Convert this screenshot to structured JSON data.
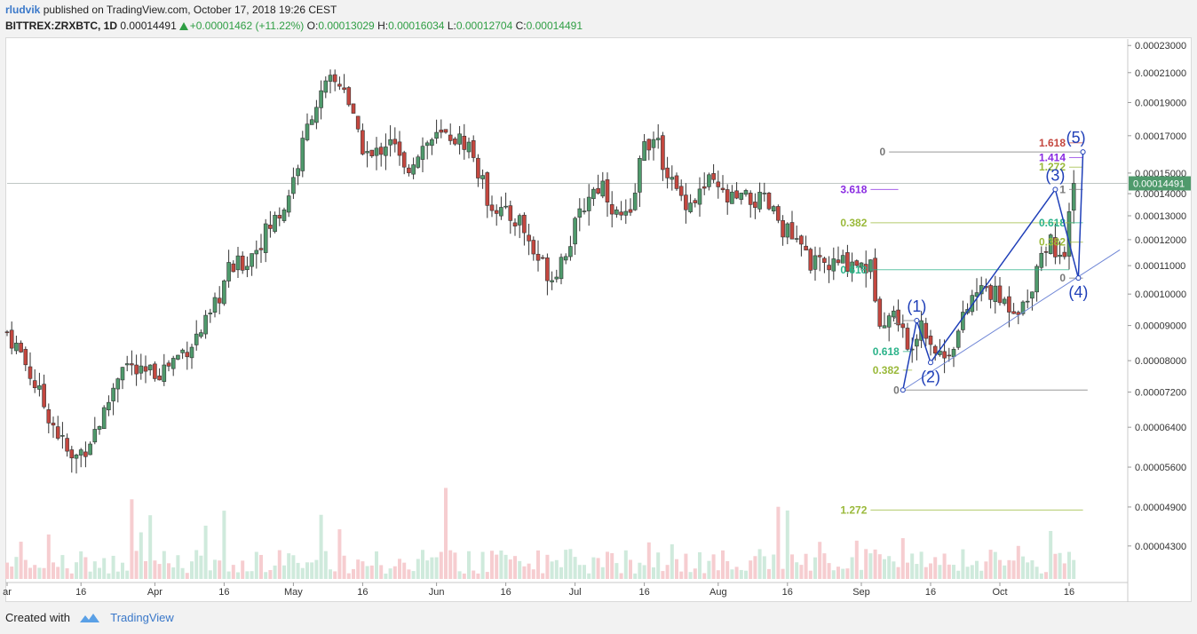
{
  "header": {
    "user": "rludvik",
    "published": "published on TradingView.com, October 17, 2018 19:26 CEST",
    "symbol": "BITTREX:ZRXBTC, 1D",
    "last": "0.00014491",
    "change": "+0.00001462 (+11.22%)",
    "o_label": "O:",
    "o": "0.00013029",
    "h_label": "H:",
    "h": "0.00016034",
    "l_label": "L:",
    "l": "0.00012704",
    "c_label": "C:",
    "c": "0.00014491"
  },
  "footer": {
    "created": "Created with",
    "brand": "TradingView"
  },
  "colors": {
    "up": "#4f9a6c",
    "down": "#c4473f",
    "vol_up": "#cfeadc",
    "vol_down": "#f6cdd0",
    "wave": "#1f3fb8",
    "trend": "#6f86d6"
  },
  "chart_data": {
    "type": "candlestick",
    "title": "BITTREX:ZRXBTC, 1D",
    "price_axis": {
      "scale": "log",
      "min": 3.85e-05,
      "max": 0.000235,
      "ticks": [
        "0.00023000",
        "0.00021000",
        "0.00019000",
        "0.00017000",
        "0.00015000",
        "0.00014000",
        "0.00013000",
        "0.00012000",
        "0.00011000",
        "0.00010000",
        "0.00009000",
        "0.00008000",
        "0.00007200",
        "0.00006400",
        "0.00005600",
        "0.00004900",
        "0.00004300"
      ],
      "last_price_label": "0.00014491"
    },
    "time_axis": {
      "labels": [
        {
          "day": 0,
          "text": "ar"
        },
        {
          "day": 16,
          "text": "16"
        },
        {
          "day": 32,
          "text": "Apr"
        },
        {
          "day": 47,
          "text": "16"
        },
        {
          "day": 62,
          "text": "May"
        },
        {
          "day": 77,
          "text": "16"
        },
        {
          "day": 93,
          "text": "Jun"
        },
        {
          "day": 108,
          "text": "16"
        },
        {
          "day": 123,
          "text": "Jul"
        },
        {
          "day": 138,
          "text": "16"
        },
        {
          "day": 154,
          "text": "Aug"
        },
        {
          "day": 169,
          "text": "16"
        },
        {
          "day": 185,
          "text": "Sep"
        },
        {
          "day": 200,
          "text": "16"
        },
        {
          "day": 215,
          "text": "Oct"
        },
        {
          "day": 230,
          "text": "16"
        }
      ]
    },
    "close_anchors": [
      [
        0,
        8.8e-05
      ],
      [
        3,
        8.2e-05
      ],
      [
        8,
        6.9e-05
      ],
      [
        14,
        5.7e-05
      ],
      [
        17,
        6e-05
      ],
      [
        21,
        6.7e-05
      ],
      [
        25,
        8e-05
      ],
      [
        29,
        7.6e-05
      ],
      [
        34,
        7.8e-05
      ],
      [
        40,
        8.5e-05
      ],
      [
        44,
        9.2e-05
      ],
      [
        48,
        0.000108
      ],
      [
        52,
        0.000112
      ],
      [
        56,
        0.000123
      ],
      [
        60,
        0.000134
      ],
      [
        63,
        0.000155
      ],
      [
        66,
        0.000185
      ],
      [
        70,
        0.000203
      ],
      [
        73,
        0.000202
      ],
      [
        76,
        0.000168
      ],
      [
        79,
        0.000157
      ],
      [
        83,
        0.00017
      ],
      [
        86,
        0.00015
      ],
      [
        89,
        0.000162
      ],
      [
        92,
        0.000168
      ],
      [
        96,
        0.00017
      ],
      [
        100,
        0.000165
      ],
      [
        104,
        0.000138
      ],
      [
        108,
        0.00013
      ],
      [
        111,
        0.000128
      ],
      [
        114,
        0.000115
      ],
      [
        118,
        0.000106
      ],
      [
        122,
        0.00012
      ],
      [
        126,
        0.00014
      ],
      [
        129,
        0.000145
      ],
      [
        132,
        0.00013
      ],
      [
        135,
        0.000128
      ],
      [
        138,
        0.00017
      ],
      [
        141,
        0.000163
      ],
      [
        145,
        0.00014
      ],
      [
        148,
        0.000136
      ],
      [
        152,
        0.000145
      ],
      [
        156,
        0.000137
      ],
      [
        160,
        0.000137
      ],
      [
        164,
        0.000136
      ],
      [
        167,
        0.000128
      ],
      [
        171,
        0.000118
      ],
      [
        175,
        0.00011
      ],
      [
        179,
        0.00011
      ],
      [
        183,
        0.000112
      ],
      [
        187,
        0.000109
      ],
      [
        189,
        9.3e-05
      ],
      [
        193,
        9.3e-05
      ],
      [
        195,
        8.2e-05
      ],
      [
        196,
        8.6e-05
      ],
      [
        198,
        9.2e-05
      ],
      [
        201,
        8.3e-05
      ],
      [
        203,
        8.1e-05
      ],
      [
        206,
        8.8e-05
      ],
      [
        209,
        9.9e-05
      ],
      [
        212,
        0.000102
      ],
      [
        215,
        9.8e-05
      ],
      [
        218,
        9.6e-05
      ],
      [
        221,
        9.7e-05
      ],
      [
        223,
        0.000112
      ],
      [
        226,
        0.00012
      ],
      [
        228,
        0.000114
      ],
      [
        229,
        0.00011
      ],
      [
        230,
        0.00013
      ],
      [
        231,
        0.000145
      ]
    ],
    "current_price": 0.00014491,
    "elliott_waves": [
      {
        "label": "(1)",
        "day": 197,
        "price": 9.15e-05
      },
      {
        "label": "(2)",
        "day": 200,
        "price": 7.95e-05
      },
      {
        "label": "(3)",
        "day": 227,
        "price": 0.000142
      },
      {
        "label": "(4)",
        "day": 232,
        "price": 0.0001055
      },
      {
        "label": "(5)",
        "day": 233,
        "price": 0.000161
      }
    ],
    "wave_origin": {
      "day": 194,
      "price": 7.25e-05
    },
    "fib_sets": [
      {
        "color": "#2bb38a",
        "label": "0.618",
        "day_from": 187,
        "day_to": 230,
        "price": 0.0001085
      },
      {
        "color": "#9ab93a",
        "label": "0.382",
        "day_from": 187,
        "day_to": 231,
        "price": 0.000127
      },
      {
        "color": "#8a2be2",
        "label": "3.618",
        "day_from": 187,
        "day_to": 193,
        "price": 0.000142
      },
      {
        "color": "#2bb38a",
        "label": "0.618",
        "day_from": 194,
        "day_to": 196,
        "price": 8.25e-05
      },
      {
        "color": "#9ab93a",
        "label": "0.382",
        "day_from": 194,
        "day_to": 196,
        "price": 7.75e-05
      },
      {
        "color": "#777777",
        "label": "0",
        "day_from": 194,
        "day_to": 234,
        "price": 7.25e-05
      },
      {
        "color": "#777777",
        "label": "1",
        "day_from": 194,
        "day_to": 197,
        "price": 9.15e-05
      },
      {
        "color": "#2bb38a",
        "label": "0.618",
        "day_from": 230,
        "day_to": 233,
        "price": 0.000127
      },
      {
        "color": "#9ab93a",
        "label": "0.382",
        "day_from": 230,
        "day_to": 233,
        "price": 0.000119
      },
      {
        "color": "#777777",
        "label": "0",
        "day_from": 230,
        "day_to": 233,
        "price": 0.0001055
      },
      {
        "color": "#777777",
        "label": "1",
        "day_from": 230,
        "day_to": 233,
        "price": 0.000142
      },
      {
        "color": "#777777",
        "label": "0",
        "day_from": 191,
        "day_to": 233,
        "price": 0.000161
      },
      {
        "color": "#9ab93a",
        "label": "1.272",
        "day_from": 230,
        "day_to": 233,
        "price": 0.000153
      },
      {
        "color": "#8a2be2",
        "label": "1.414",
        "day_from": 230,
        "day_to": 233,
        "price": 0.000158
      },
      {
        "color": "#c4473f",
        "label": "1.618",
        "day_from": 230,
        "day_to": 233,
        "price": 0.000166
      },
      {
        "color": "#9ab93a",
        "label": "1.272",
        "day_from": 187,
        "day_to": 233,
        "price": 4.85e-05
      }
    ],
    "trendline": {
      "from": {
        "day": 194,
        "price": 7.25e-05
      },
      "to": {
        "day": 241,
        "price": 0.000116
      }
    }
  }
}
